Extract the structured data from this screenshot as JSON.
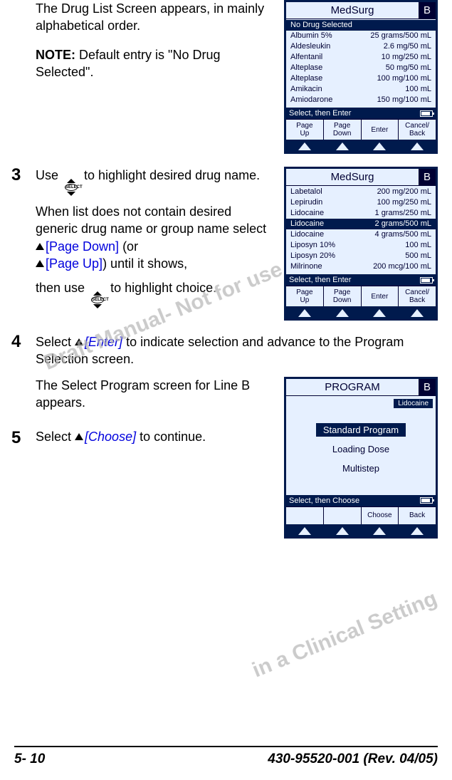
{
  "step1": {
    "p1": "The Drug List Screen appears, in mainly alphabetical order.",
    "note_label": "NOTE:",
    "note_text": " Default entry is \"No Drug Selected\"."
  },
  "step3": {
    "num": "3",
    "p1a": "Use ",
    "p1b": " to highlight desired drug name.",
    "p2": "When list does not contain desired generic drug name or group name select",
    "pd": "[Page Down]",
    "or": " (or",
    "pu": "[Page Up]",
    "p3": ") until it shows,",
    "p4a": "then use ",
    "p4b": " to highlight choice."
  },
  "step4": {
    "num": "4",
    "a": "Select ",
    "enter": "[Enter]",
    "b": " to indicate selection and advance to the Program Selection screen.",
    "c": "The Select Program screen for Line B appears."
  },
  "step5": {
    "num": "5",
    "a": "Select ",
    "choose": "[Choose]",
    "b": " to continue."
  },
  "screen1": {
    "title": "MedSurg",
    "line": "B",
    "rows": [
      {
        "name": "No Drug Selected",
        "val": "",
        "sel": true
      },
      {
        "name": "Albumin 5%",
        "val": "25 grams/500 mL"
      },
      {
        "name": "Aldesleukin",
        "val": "2.6 mg/50 mL"
      },
      {
        "name": "Alfentanil",
        "val": "10 mg/250 mL"
      },
      {
        "name": "Alteplase",
        "val": "50 mg/50 mL"
      },
      {
        "name": "Alteplase",
        "val": "100 mg/100 mL"
      },
      {
        "name": "Amikacin",
        "val": "100 mL"
      },
      {
        "name": "Amiodarone",
        "val": "150 mg/100 mL"
      }
    ],
    "status": "Select, then Enter",
    "btns": [
      "Page\nUp",
      "Page\nDown",
      "Enter",
      "Cancel/\nBack"
    ]
  },
  "screen2": {
    "title": "MedSurg",
    "line": "B",
    "rows": [
      {
        "name": "Labetalol",
        "val": "200 mg/200 mL"
      },
      {
        "name": "Lepirudin",
        "val": "100 mg/250 mL"
      },
      {
        "name": "Lidocaine",
        "val": "1 grams/250 mL"
      },
      {
        "name": "Lidocaine",
        "val": "2 grams/500 mL",
        "sel": true
      },
      {
        "name": "Lidocaine",
        "val": "4 grams/500 mL"
      },
      {
        "name": "Liposyn 10%",
        "val": "100 mL"
      },
      {
        "name": "Liposyn 20%",
        "val": "500 mL"
      },
      {
        "name": "Milrinone",
        "val": "200 mcg/100 mL"
      }
    ],
    "status": "Select, then Enter",
    "btns": [
      "Page\nUp",
      "Page\nDown",
      "Enter",
      "Cancel/\nBack"
    ]
  },
  "screen3": {
    "title": "PROGRAM",
    "line": "B",
    "drug": "Lidocaine",
    "items": [
      {
        "label": "Standard Program",
        "sel": true
      },
      {
        "label": "Loading Dose"
      },
      {
        "label": "Multistep"
      }
    ],
    "status": "Select, then Choose",
    "btns": [
      "",
      "",
      "Choose",
      "Back"
    ]
  },
  "watermark": {
    "l1": "Draft Manual- Not for use",
    "l2": "in a Clinical Setting"
  },
  "footer": {
    "left": "5- 10",
    "right": "430-95520-001 (Rev. 04/05)"
  },
  "select_label": "SELECT"
}
